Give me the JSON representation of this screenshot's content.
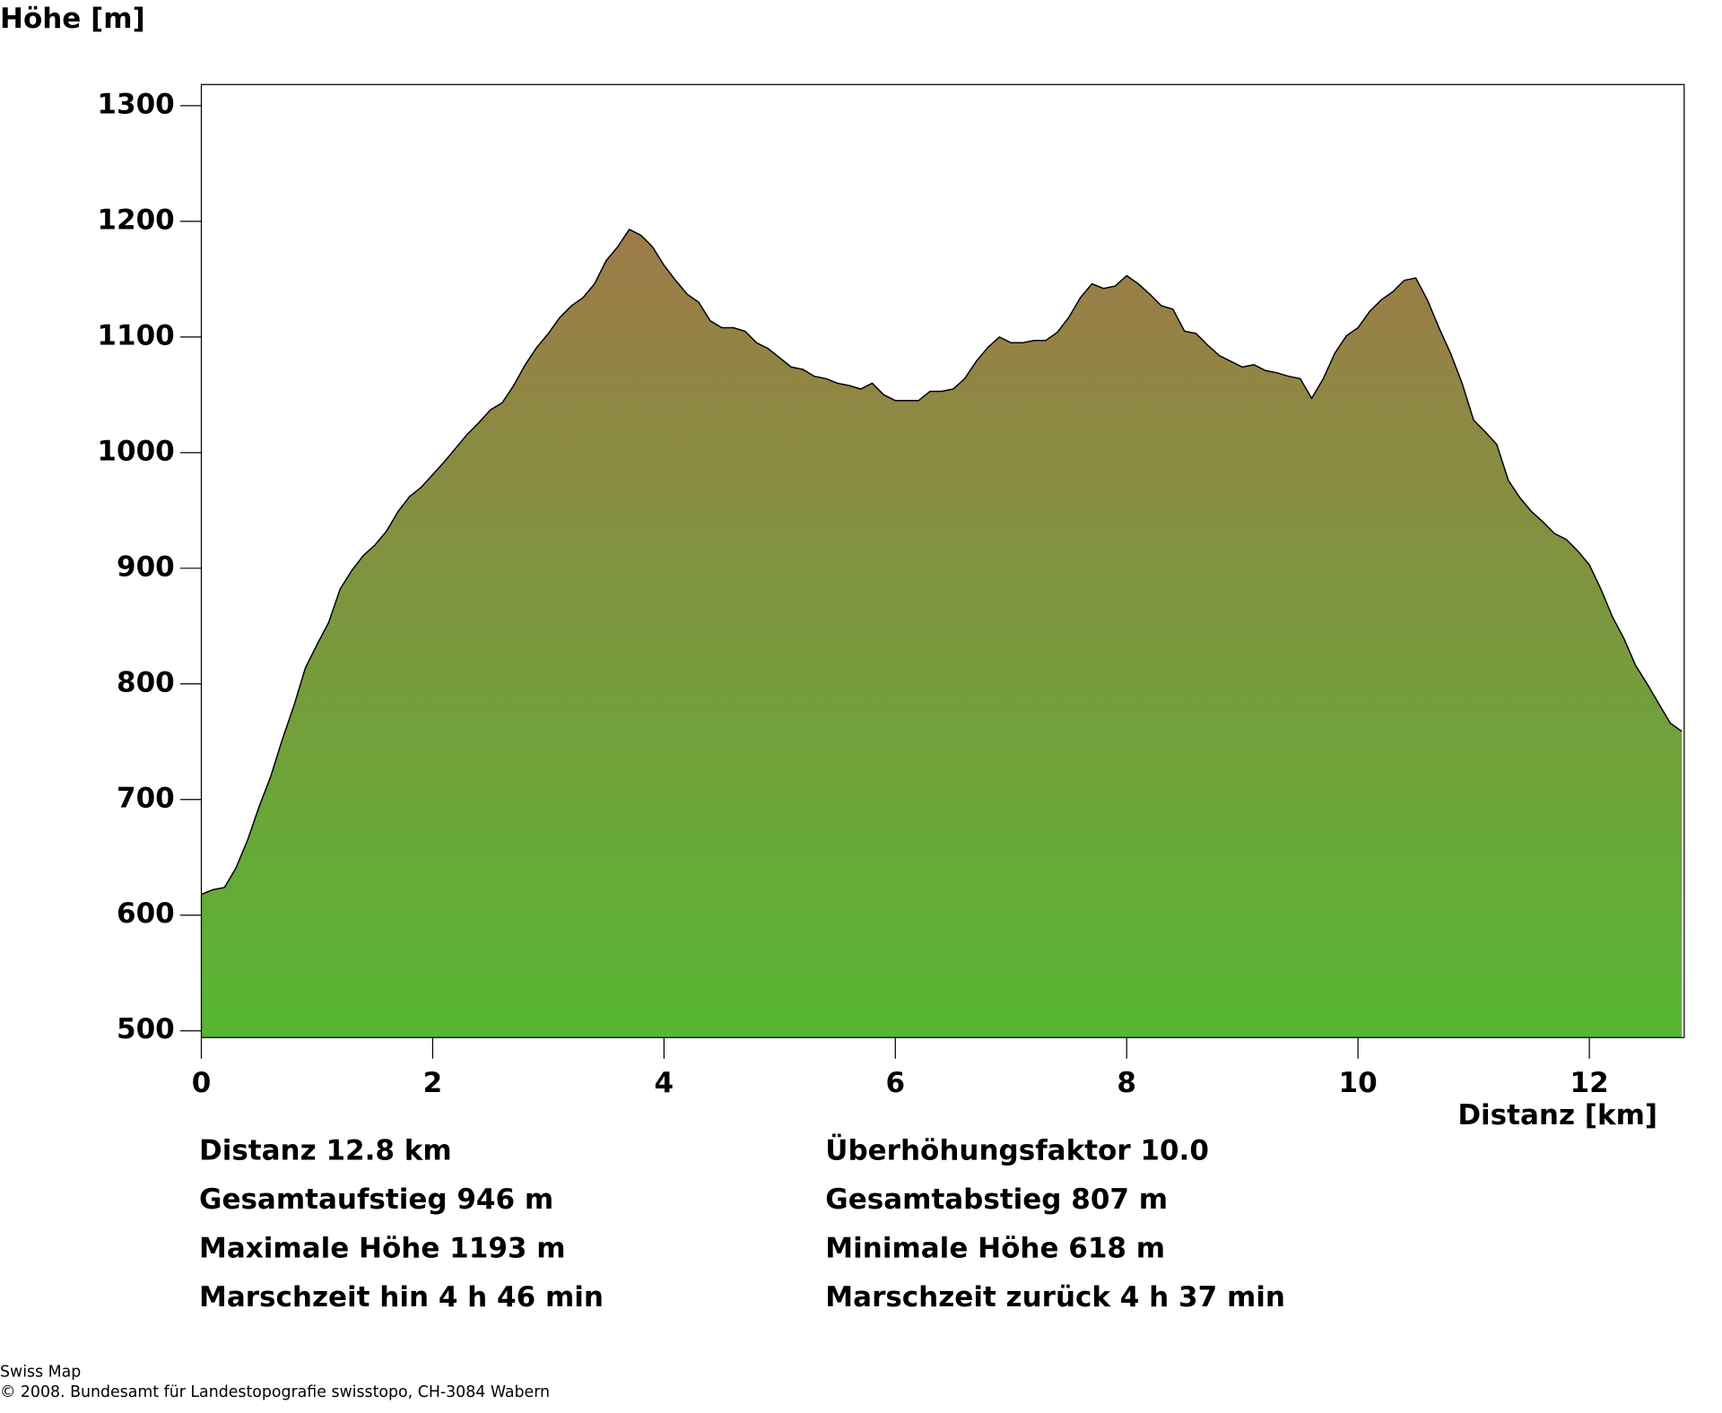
{
  "chart_data": {
    "type": "area",
    "ylabel": "Höhe [m]",
    "xlabel": "Distanz [km]",
    "x": [
      0,
      0.1,
      0.2,
      0.3,
      0.4,
      0.5,
      0.6,
      0.7,
      0.8,
      0.9,
      1.0,
      1.1,
      1.2,
      1.3,
      1.4,
      1.5,
      1.6,
      1.7,
      1.8,
      1.9,
      2.0,
      2.1,
      2.2,
      2.3,
      2.4,
      2.5,
      2.6,
      2.7,
      2.8,
      2.9,
      3.0,
      3.1,
      3.2,
      3.3,
      3.4,
      3.5,
      3.6,
      3.7,
      3.8,
      3.9,
      4.0,
      4.1,
      4.2,
      4.3,
      4.4,
      4.5,
      4.6,
      4.7,
      4.8,
      4.9,
      5.0,
      5.1,
      5.2,
      5.3,
      5.4,
      5.5,
      5.6,
      5.7,
      5.8,
      5.9,
      6.0,
      6.1,
      6.2,
      6.3,
      6.4,
      6.5,
      6.6,
      6.7,
      6.8,
      6.9,
      7.0,
      7.1,
      7.2,
      7.3,
      7.4,
      7.5,
      7.6,
      7.7,
      7.8,
      7.9,
      8.0,
      8.1,
      8.2,
      8.3,
      8.4,
      8.5,
      8.6,
      8.7,
      8.8,
      8.9,
      9.0,
      9.1,
      9.2,
      9.3,
      9.4,
      9.5,
      9.6,
      9.7,
      9.8,
      9.9,
      10.0,
      10.1,
      10.2,
      10.3,
      10.4,
      10.5,
      10.6,
      10.7,
      10.8,
      10.9,
      11.0,
      11.1,
      11.2,
      11.3,
      11.4,
      11.5,
      11.6,
      11.7,
      11.8,
      11.9,
      12.0,
      12.1,
      12.2,
      12.3,
      12.4,
      12.5,
      12.6,
      12.7,
      12.8
    ],
    "series": [
      {
        "name": "Höhe",
        "color": "#000000",
        "values": [
          618,
          622,
          624,
          641,
          665,
          694,
          720,
          752,
          781,
          814,
          834,
          853,
          882,
          898,
          911,
          920,
          932,
          949,
          962,
          970,
          981,
          992,
          1004,
          1016,
          1026,
          1037,
          1043,
          1058,
          1076,
          1091,
          1103,
          1117,
          1127,
          1134,
          1146,
          1166,
          1178,
          1193,
          1188,
          1178,
          1162,
          1149,
          1137,
          1130,
          1114,
          1108,
          1108,
          1105,
          1095,
          1090,
          1082,
          1074,
          1072,
          1066,
          1064,
          1060,
          1058,
          1055,
          1060,
          1050,
          1045,
          1045,
          1045,
          1053,
          1053,
          1055,
          1064,
          1079,
          1091,
          1100,
          1095,
          1095,
          1097,
          1097,
          1104,
          1117,
          1134,
          1146,
          1142,
          1144,
          1153,
          1146,
          1137,
          1127,
          1124,
          1105,
          1103,
          1093,
          1084,
          1079,
          1074,
          1076,
          1071,
          1069,
          1066,
          1064,
          1047,
          1064,
          1086,
          1101,
          1108,
          1122,
          1132,
          1139,
          1149,
          1151,
          1132,
          1108,
          1086,
          1060,
          1028,
          1018,
          1007,
          976,
          961,
          949,
          940,
          930,
          925,
          915,
          903,
          882,
          858,
          839,
          816,
          800,
          783,
          766,
          759
        ]
      }
    ],
    "fill_top_color": "#9e7a48",
    "fill_bottom_color": "#57b733",
    "xlim": [
      0,
      12.82
    ],
    "ylim": [
      494.2,
      1318.3
    ],
    "xticks": [
      0,
      2,
      4,
      6,
      8,
      10,
      12
    ],
    "yticks": [
      500,
      600,
      700,
      800,
      900,
      1000,
      1100,
      1200,
      1300
    ]
  },
  "stats": [
    [
      "Distanz 12.8 km",
      "Überhöhungsfaktor 10.0"
    ],
    [
      "Gesamtaufstieg  946 m",
      "Gesamtabstieg  807 m"
    ],
    [
      "Maximale Höhe  1193 m",
      "Minimale Höhe  618 m"
    ],
    [
      "Marschzeit hin  4 h 46 min",
      "Marschzeit zurück  4 h 37 min"
    ]
  ],
  "footer": [
    "Swiss Map",
    "© 2008. Bundesamt für Landestopografie swisstopo, CH-3084 Wabern"
  ]
}
